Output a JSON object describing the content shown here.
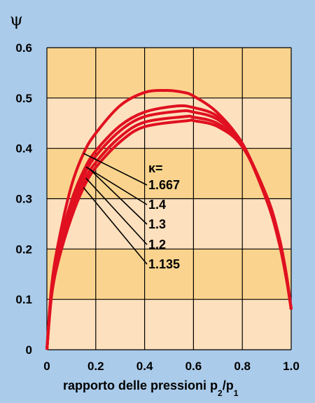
{
  "chart_data": {
    "type": "line",
    "ylabel": "ψ",
    "xlabel": "rapporto delle pressioni p",
    "xlabel_sub2": "2",
    "xlabel_slash": "/p",
    "xlabel_sub1": "1",
    "xlim": [
      0,
      1.0
    ],
    "ylim": [
      0,
      0.6
    ],
    "x_ticks": [
      "0",
      "0.2",
      "0.4",
      "0.6",
      "0.8",
      "1.0"
    ],
    "y_ticks": [
      "0",
      "0.1",
      "0.2",
      "0.3",
      "0.4",
      "0.5",
      "0.6"
    ],
    "grid": true,
    "legend_title": "κ=",
    "annotation_anchors_x": [
      0.15,
      0.16,
      0.17,
      0.16,
      0.15
    ],
    "series": [
      {
        "name": "1.667",
        "x": [
          0,
          0.02,
          0.05,
          0.1,
          0.15,
          0.2,
          0.3,
          0.4,
          0.487,
          0.55,
          0.6,
          0.7,
          0.8,
          0.9,
          0.95,
          0.98,
          1.0
        ],
        "values": [
          0,
          0.13,
          0.22,
          0.325,
          0.39,
          0.43,
          0.485,
          0.511,
          0.515,
          0.512,
          0.504,
          0.47,
          0.408,
          0.296,
          0.213,
          0.141,
          0.08
        ]
      },
      {
        "name": "1.4",
        "x": [
          0,
          0.02,
          0.05,
          0.1,
          0.15,
          0.2,
          0.3,
          0.4,
          0.528,
          0.6,
          0.7,
          0.8,
          0.9,
          0.95,
          0.98,
          1.0
        ],
        "values": [
          0,
          0.125,
          0.205,
          0.295,
          0.355,
          0.395,
          0.445,
          0.472,
          0.484,
          0.481,
          0.463,
          0.41,
          0.3,
          0.218,
          0.145,
          0.08
        ]
      },
      {
        "name": "1.3",
        "x": [
          0,
          0.02,
          0.05,
          0.1,
          0.15,
          0.2,
          0.3,
          0.4,
          0.546,
          0.6,
          0.7,
          0.8,
          0.9,
          0.95,
          0.98,
          1.0
        ],
        "values": [
          0,
          0.12,
          0.198,
          0.285,
          0.345,
          0.385,
          0.435,
          0.463,
          0.474,
          0.472,
          0.457,
          0.408,
          0.302,
          0.22,
          0.147,
          0.08
        ]
      },
      {
        "name": "1.2",
        "x": [
          0,
          0.02,
          0.05,
          0.1,
          0.15,
          0.2,
          0.3,
          0.4,
          0.565,
          0.6,
          0.7,
          0.8,
          0.9,
          0.95,
          0.98,
          1.0
        ],
        "values": [
          0,
          0.115,
          0.19,
          0.273,
          0.333,
          0.372,
          0.423,
          0.452,
          0.463,
          0.462,
          0.449,
          0.406,
          0.304,
          0.223,
          0.149,
          0.08
        ]
      },
      {
        "name": "1.135",
        "x": [
          0,
          0.02,
          0.05,
          0.1,
          0.15,
          0.2,
          0.3,
          0.4,
          0.577,
          0.6,
          0.7,
          0.8,
          0.9,
          0.95,
          0.98,
          1.0
        ],
        "values": [
          0,
          0.11,
          0.182,
          0.262,
          0.322,
          0.362,
          0.413,
          0.443,
          0.455,
          0.455,
          0.443,
          0.403,
          0.305,
          0.225,
          0.15,
          0.08
        ]
      }
    ]
  },
  "colors": {
    "background": "#aacbea",
    "band_dark": "#fad48e",
    "band_light": "#fde0bd",
    "grid": "#000000",
    "curve": "#e01020"
  }
}
